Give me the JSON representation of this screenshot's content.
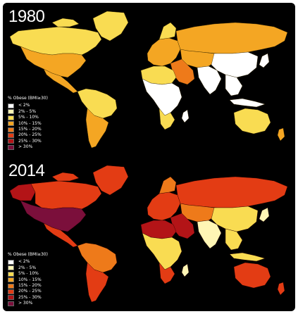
{
  "panels": [
    {
      "year": "1980",
      "legend": {
        "title": "% Obese (BMI≥30)",
        "items": [
          {
            "label": "< 2%",
            "color": "#ffffff"
          },
          {
            "label": "2% - 5%",
            "color": "#fff6b5"
          },
          {
            "label": "5% - 10%",
            "color": "#f9dc52"
          },
          {
            "label": "10% - 15%",
            "color": "#f4a623"
          },
          {
            "label": "15% - 20%",
            "color": "#ee7a1a"
          },
          {
            "label": "20% - 25%",
            "color": "#e33c14"
          },
          {
            "label": "25% - 30%",
            "color": "#b31417"
          },
          {
            "label": "> 30%",
            "color": "#7b0f3b"
          }
        ]
      }
    },
    {
      "year": "2014",
      "legend": {
        "title": "% Obese (BMI≥30)",
        "items": [
          {
            "label": "< 2%",
            "color": "#ffffff"
          },
          {
            "label": "2% - 5%",
            "color": "#fff6b5"
          },
          {
            "label": "5% - 10%",
            "color": "#f9dc52"
          },
          {
            "label": "10% - 15%",
            "color": "#f4a623"
          },
          {
            "label": "15% - 20%",
            "color": "#ee7a1a"
          },
          {
            "label": "20% - 25%",
            "color": "#e33c14"
          },
          {
            "label": "25% - 30%",
            "color": "#b31417"
          },
          {
            "label": "> 30%",
            "color": "#7b0f3b"
          }
        ]
      }
    }
  ]
}
